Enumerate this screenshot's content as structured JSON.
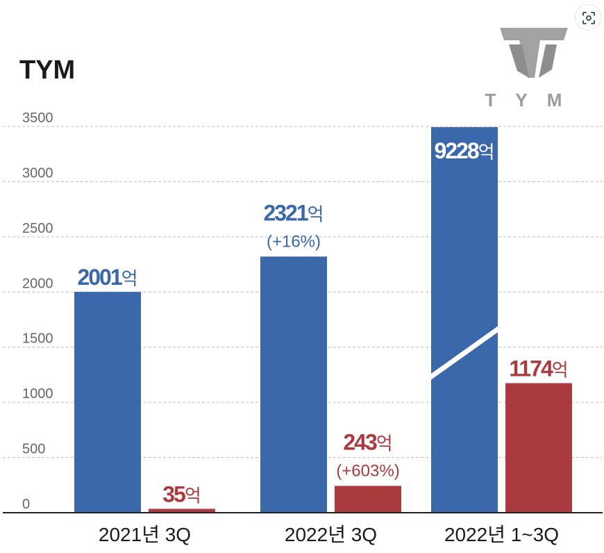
{
  "chart_data": {
    "type": "bar",
    "title": "TYM",
    "categories": [
      "2021년 3Q",
      "2022년 3Q",
      "2022년 1~3Q"
    ],
    "series": [
      {
        "values": [
          2001,
          2321,
          9228
        ],
        "color": "#3a68ab"
      },
      {
        "values": [
          35,
          243,
          1174
        ],
        "color": "#ab3a3f"
      }
    ],
    "data_labels": [
      [
        {
          "value": "2001",
          "unit": "억",
          "change": ""
        },
        {
          "value": "2321",
          "unit": "억",
          "change": "(+16%)"
        },
        {
          "value": "9228",
          "unit": "억",
          "change": ""
        }
      ],
      [
        {
          "value": "35",
          "unit": "억",
          "change": ""
        },
        {
          "value": "243",
          "unit": "억",
          "change": "(+603%)"
        },
        {
          "value": "1174",
          "unit": "억",
          "change": ""
        }
      ]
    ],
    "y_ticks": [
      "0",
      "500",
      "1000",
      "1500",
      "2000",
      "2500",
      "3000",
      "3500"
    ],
    "ylim": [
      0,
      3500
    ],
    "axis_break": {
      "category_index": 2,
      "series_index": 0
    },
    "grid": true,
    "logo_text": "TYM"
  },
  "colors": {
    "background": "#ffffff",
    "grid": "#bdbdbd",
    "axis": "#222222",
    "text": "#1a1a1a",
    "tick_text": "#666666",
    "logo": "#9b9b9b"
  },
  "icons": {
    "lens": "image-search-icon"
  }
}
